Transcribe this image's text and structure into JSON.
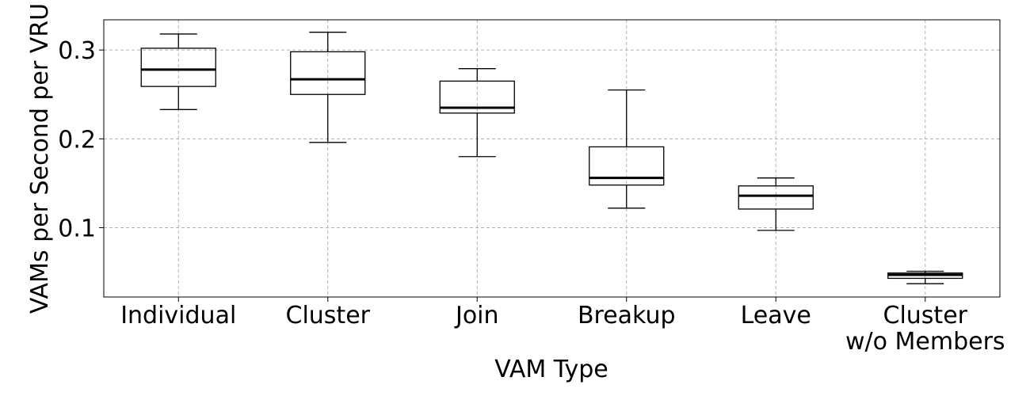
{
  "chart_data": {
    "type": "box",
    "title": "",
    "xlabel": "VAM Type",
    "ylabel": "VAMs per Second per VRU",
    "ylim": [
      0.022,
      0.334
    ],
    "yticks": [
      {
        "value": 0.1,
        "label": "0.1"
      },
      {
        "value": 0.2,
        "label": "0.2"
      },
      {
        "value": 0.3,
        "label": "0.3"
      }
    ],
    "grid": true,
    "categories": [
      {
        "lines": [
          "Individual"
        ]
      },
      {
        "lines": [
          "Cluster"
        ]
      },
      {
        "lines": [
          "Join"
        ]
      },
      {
        "lines": [
          "Breakup"
        ]
      },
      {
        "lines": [
          "Leave"
        ]
      },
      {
        "lines": [
          "Cluster",
          "w/o Members"
        ]
      }
    ],
    "boxes": [
      {
        "whisker_low": 0.233,
        "q1": 0.259,
        "median": 0.278,
        "q3": 0.302,
        "whisker_high": 0.318
      },
      {
        "whisker_low": 0.196,
        "q1": 0.25,
        "median": 0.267,
        "q3": 0.298,
        "whisker_high": 0.32
      },
      {
        "whisker_low": 0.18,
        "q1": 0.229,
        "median": 0.235,
        "q3": 0.265,
        "whisker_high": 0.279
      },
      {
        "whisker_low": 0.122,
        "q1": 0.148,
        "median": 0.156,
        "q3": 0.191,
        "whisker_high": 0.255
      },
      {
        "whisker_low": 0.097,
        "q1": 0.121,
        "median": 0.136,
        "q3": 0.147,
        "whisker_high": 0.156
      },
      {
        "whisker_low": 0.037,
        "q1": 0.043,
        "median": 0.047,
        "q3": 0.049,
        "whisker_high": 0.051
      }
    ]
  }
}
